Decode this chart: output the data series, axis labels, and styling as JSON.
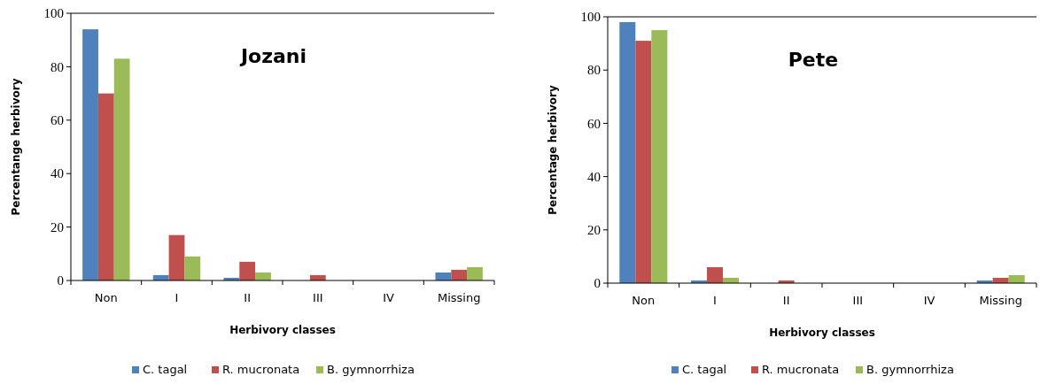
{
  "chart_data": [
    {
      "type": "bar",
      "title": "Jozani",
      "xlabel": "Herbivory classes",
      "ylabel": "Percentange herbivory",
      "categories": [
        "Non",
        "I",
        "II",
        "III",
        "IV",
        "Missing"
      ],
      "series": [
        {
          "name": "C. tagal",
          "color": "#4f81bd",
          "values": [
            94,
            2,
            1,
            0,
            0,
            3
          ]
        },
        {
          "name": "R. mucronata",
          "color": "#c0504d",
          "values": [
            70,
            17,
            7,
            2,
            0,
            4
          ]
        },
        {
          "name": "B. gymnorrhiza",
          "color": "#9bbb59",
          "values": [
            83,
            9,
            3,
            0,
            0,
            5
          ]
        }
      ],
      "ylim": [
        0,
        100
      ],
      "yticks": [
        0,
        20,
        40,
        60,
        80,
        100
      ],
      "grid": false,
      "legend": "bottom"
    },
    {
      "type": "bar",
      "title": "Pete",
      "xlabel": "Herbivory classes",
      "ylabel": "Percentage herbivory",
      "categories": [
        "Non",
        "I",
        "II",
        "III",
        "IV",
        "Missing"
      ],
      "series": [
        {
          "name": "C. tagal",
          "color": "#4f81bd",
          "values": [
            98,
            1,
            0,
            0,
            0,
            1
          ]
        },
        {
          "name": "R. mucronata",
          "color": "#c0504d",
          "values": [
            91,
            6,
            1,
            0,
            0,
            2
          ]
        },
        {
          "name": "B. gymnorrhiza",
          "color": "#9bbb59",
          "values": [
            95,
            2,
            0,
            0,
            0,
            3
          ]
        }
      ],
      "ylim": [
        0,
        100
      ],
      "yticks": [
        0,
        20,
        40,
        60,
        80,
        100
      ],
      "grid": false,
      "legend": "bottom"
    }
  ]
}
